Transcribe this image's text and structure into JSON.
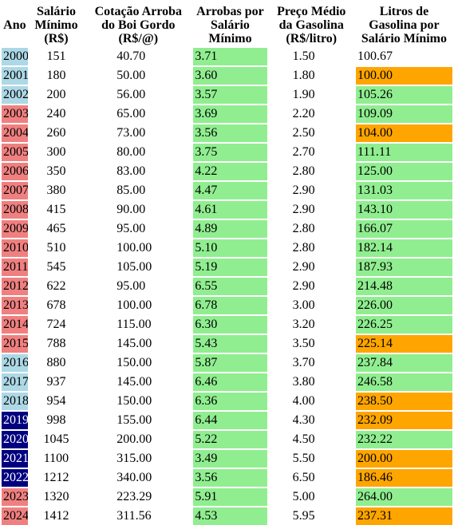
{
  "headers": [
    [
      "Ano"
    ],
    [
      "Salário",
      "Mínimo",
      "(R$)"
    ],
    [
      "Cotação Arroba",
      "do Boi Gordo",
      "(R$/@)"
    ],
    [
      "Arrobas por",
      "Salário",
      "Mínimo"
    ],
    [
      "Preço Médio",
      "da Gasolina",
      "(R$/litro)"
    ],
    [
      "Litros de",
      "Gasolina por",
      "Salário Mínimo"
    ]
  ],
  "colors": {
    "light_blue": "#add8e6",
    "light_red": "#f08080",
    "navy": "#000080",
    "green": "#90ee90",
    "orange": "#ffa500",
    "white": "#ffffff"
  },
  "rows": [
    {
      "ano": "2000",
      "ano_color": "light_blue",
      "salario": "151",
      "arroba": "40.70",
      "arrobas": "3.71",
      "arrobas_color": "green",
      "gasolina": "1.50",
      "litros": "100.67",
      "litros_color": "white"
    },
    {
      "ano": "2001",
      "ano_color": "light_blue",
      "salario": "180",
      "arroba": "50.00",
      "arrobas": "3.60",
      "arrobas_color": "green",
      "gasolina": "1.80",
      "litros": "100.00",
      "litros_color": "orange"
    },
    {
      "ano": "2002",
      "ano_color": "light_blue",
      "salario": "200",
      "arroba": "56.00",
      "arrobas": "3.57",
      "arrobas_color": "green",
      "gasolina": "1.90",
      "litros": "105.26",
      "litros_color": "green"
    },
    {
      "ano": "2003",
      "ano_color": "light_red",
      "salario": "240",
      "arroba": "65.00",
      "arrobas": "3.69",
      "arrobas_color": "green",
      "gasolina": "2.20",
      "litros": "109.09",
      "litros_color": "green"
    },
    {
      "ano": "2004",
      "ano_color": "light_red",
      "salario": "260",
      "arroba": "73.00",
      "arrobas": "3.56",
      "arrobas_color": "green",
      "gasolina": "2.50",
      "litros": "104.00",
      "litros_color": "orange"
    },
    {
      "ano": "2005",
      "ano_color": "light_red",
      "salario": "300",
      "arroba": "80.00",
      "arrobas": "3.75",
      "arrobas_color": "green",
      "gasolina": "2.70",
      "litros": "111.11",
      "litros_color": "green"
    },
    {
      "ano": "2006",
      "ano_color": "light_red",
      "salario": "350",
      "arroba": "83.00",
      "arrobas": "4.22",
      "arrobas_color": "green",
      "gasolina": "2.80",
      "litros": "125.00",
      "litros_color": "green"
    },
    {
      "ano": "2007",
      "ano_color": "light_red",
      "salario": "380",
      "arroba": "85.00",
      "arrobas": "4.47",
      "arrobas_color": "green",
      "gasolina": "2.90",
      "litros": "131.03",
      "litros_color": "green"
    },
    {
      "ano": "2008",
      "ano_color": "light_red",
      "salario": "415",
      "arroba": "90.00",
      "arrobas": "4.61",
      "arrobas_color": "green",
      "gasolina": "2.90",
      "litros": "143.10",
      "litros_color": "green"
    },
    {
      "ano": "2009",
      "ano_color": "light_red",
      "salario": "465",
      "arroba": "95.00",
      "arrobas": "4.89",
      "arrobas_color": "green",
      "gasolina": "2.80",
      "litros": "166.07",
      "litros_color": "green"
    },
    {
      "ano": "2010",
      "ano_color": "light_red",
      "salario": "510",
      "arroba": "100.00",
      "arrobas": "5.10",
      "arrobas_color": "green",
      "gasolina": "2.80",
      "litros": "182.14",
      "litros_color": "green"
    },
    {
      "ano": "2011",
      "ano_color": "light_red",
      "salario": "545",
      "arroba": "105.00",
      "arrobas": "5.19",
      "arrobas_color": "green",
      "gasolina": "2.90",
      "litros": "187.93",
      "litros_color": "green"
    },
    {
      "ano": "2012",
      "ano_color": "light_red",
      "salario": "622",
      "arroba": "95.00",
      "arrobas": "6.55",
      "arrobas_color": "green",
      "gasolina": "2.90",
      "litros": "214.48",
      "litros_color": "green"
    },
    {
      "ano": "2013",
      "ano_color": "light_red",
      "salario": "678",
      "arroba": "100.00",
      "arrobas": "6.78",
      "arrobas_color": "green",
      "gasolina": "3.00",
      "litros": "226.00",
      "litros_color": "green"
    },
    {
      "ano": "2014",
      "ano_color": "light_red",
      "salario": "724",
      "arroba": "115.00",
      "arrobas": "6.30",
      "arrobas_color": "green",
      "gasolina": "3.20",
      "litros": "226.25",
      "litros_color": "green"
    },
    {
      "ano": "2015",
      "ano_color": "light_red",
      "salario": "788",
      "arroba": "145.00",
      "arrobas": "5.43",
      "arrobas_color": "green",
      "gasolina": "3.50",
      "litros": "225.14",
      "litros_color": "orange"
    },
    {
      "ano": "2016",
      "ano_color": "light_blue",
      "salario": "880",
      "arroba": "150.00",
      "arrobas": "5.87",
      "arrobas_color": "green",
      "gasolina": "3.70",
      "litros": "237.84",
      "litros_color": "green"
    },
    {
      "ano": "2017",
      "ano_color": "light_blue",
      "salario": "937",
      "arroba": "145.00",
      "arrobas": "6.46",
      "arrobas_color": "green",
      "gasolina": "3.80",
      "litros": "246.58",
      "litros_color": "green"
    },
    {
      "ano": "2018",
      "ano_color": "light_blue",
      "salario": "954",
      "arroba": "150.00",
      "arrobas": "6.36",
      "arrobas_color": "green",
      "gasolina": "4.00",
      "litros": "238.50",
      "litros_color": "orange"
    },
    {
      "ano": "2019",
      "ano_color": "navy",
      "salario": "998",
      "arroba": "155.00",
      "arrobas": "6.44",
      "arrobas_color": "green",
      "gasolina": "4.30",
      "litros": "232.09",
      "litros_color": "orange"
    },
    {
      "ano": "2020",
      "ano_color": "navy",
      "salario": "1045",
      "arroba": "200.00",
      "arrobas": "5.22",
      "arrobas_color": "green",
      "gasolina": "4.50",
      "litros": "232.22",
      "litros_color": "green"
    },
    {
      "ano": "2021",
      "ano_color": "navy",
      "salario": "1100",
      "arroba": "315.00",
      "arrobas": "3.49",
      "arrobas_color": "green",
      "gasolina": "5.50",
      "litros": "200.00",
      "litros_color": "orange"
    },
    {
      "ano": "2022",
      "ano_color": "navy",
      "salario": "1212",
      "arroba": "340.00",
      "arrobas": "3.56",
      "arrobas_color": "green",
      "gasolina": "6.50",
      "litros": "186.46",
      "litros_color": "orange"
    },
    {
      "ano": "2023",
      "ano_color": "light_red",
      "salario": "1320",
      "arroba": "223.29",
      "arrobas": "5.91",
      "arrobas_color": "green",
      "gasolina": "5.00",
      "litros": "264.00",
      "litros_color": "green"
    },
    {
      "ano": "2024",
      "ano_color": "light_red",
      "salario": "1412",
      "arroba": "311.56",
      "arrobas": "4.53",
      "arrobas_color": "green",
      "gasolina": "5.95",
      "litros": "237.31",
      "litros_color": "orange"
    }
  ]
}
